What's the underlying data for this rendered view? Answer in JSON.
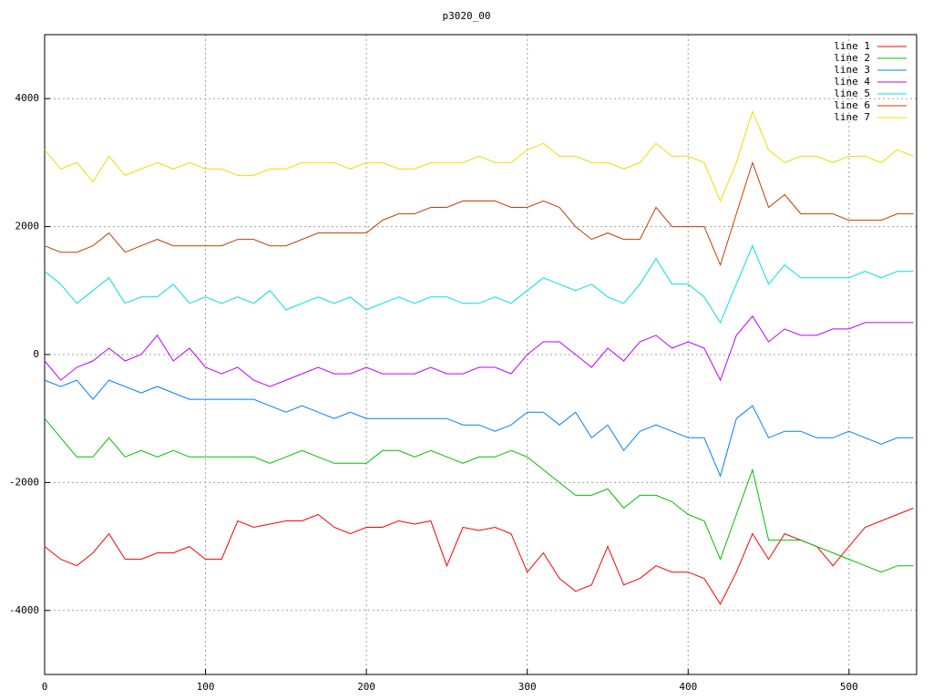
{
  "chart_data": {
    "type": "line",
    "title": "p3020_00",
    "x": [
      0,
      10,
      20,
      30,
      40,
      50,
      60,
      70,
      80,
      90,
      100,
      110,
      120,
      130,
      140,
      150,
      160,
      170,
      180,
      190,
      200,
      210,
      220,
      230,
      240,
      250,
      260,
      270,
      280,
      290,
      300,
      310,
      320,
      330,
      340,
      350,
      360,
      370,
      380,
      390,
      400,
      410,
      420,
      430,
      440,
      450,
      460,
      470,
      480,
      490,
      500,
      510,
      520,
      530,
      540
    ],
    "xlim": [
      0,
      542
    ],
    "xticks": [
      0,
      100,
      200,
      300,
      400,
      500
    ],
    "ylim": [
      -5000,
      5000
    ],
    "yticks": [
      -4000,
      -2000,
      0,
      2000,
      4000
    ],
    "grid": true,
    "legend": "top-right",
    "series": [
      {
        "name": "line 1",
        "color": "#ff0000",
        "values": [
          -3000,
          -3200,
          -3300,
          -3100,
          -2800,
          -3200,
          -3200,
          -3100,
          -3100,
          -3000,
          -3200,
          -3200,
          -2600,
          -2700,
          -2650,
          -2600,
          -2600,
          -2500,
          -2700,
          -2800,
          -2700,
          -2700,
          -2600,
          -2650,
          -2600,
          -3300,
          -2700,
          -2750,
          -2700,
          -2800,
          -3400,
          -3100,
          -3500,
          -3700,
          -3600,
          -3000,
          -3600,
          -3500,
          -3300,
          -3400,
          -3400,
          -3500,
          -3900,
          -3400,
          -2800,
          -3200,
          -2800,
          -2900,
          -3000,
          -3300,
          -3000,
          -2700,
          -2600,
          -2500,
          -2400
        ]
      },
      {
        "name": "line 2",
        "color": "#00c000",
        "values": [
          -1000,
          -1300,
          -1600,
          -1600,
          -1300,
          -1600,
          -1500,
          -1600,
          -1500,
          -1600,
          -1600,
          -1600,
          -1600,
          -1600,
          -1700,
          -1600,
          -1500,
          -1600,
          -1700,
          -1700,
          -1700,
          -1500,
          -1500,
          -1600,
          -1500,
          -1600,
          -1700,
          -1600,
          -1600,
          -1500,
          -1600,
          -1800,
          -2000,
          -2200,
          -2200,
          -2100,
          -2400,
          -2200,
          -2200,
          -2300,
          -2500,
          -2600,
          -3200,
          -2500,
          -1800,
          -2900,
          -2900,
          -2900,
          -3000,
          -3100,
          -3200,
          -3300,
          -3400,
          -3300,
          -3300
        ]
      },
      {
        "name": "line 3",
        "color": "#0080ff",
        "values": [
          -400,
          -500,
          -400,
          -700,
          -400,
          -500,
          -600,
          -500,
          -600,
          -700,
          -700,
          -700,
          -700,
          -700,
          -800,
          -900,
          -800,
          -900,
          -1000,
          -900,
          -1000,
          -1000,
          -1000,
          -1000,
          -1000,
          -1000,
          -1100,
          -1100,
          -1200,
          -1100,
          -900,
          -900,
          -1100,
          -900,
          -1300,
          -1100,
          -1500,
          -1200,
          -1100,
          -1200,
          -1300,
          -1300,
          -1900,
          -1000,
          -800,
          -1300,
          -1200,
          -1200,
          -1300,
          -1300,
          -1200,
          -1300,
          -1400,
          -1300,
          -1300
        ]
      },
      {
        "name": "line 4",
        "color": "#c000ff",
        "values": [
          -100,
          -400,
          -200,
          -100,
          100,
          -100,
          0,
          300,
          -100,
          100,
          -200,
          -300,
          -200,
          -400,
          -500,
          -400,
          -300,
          -200,
          -300,
          -300,
          -200,
          -300,
          -300,
          -300,
          -200,
          -300,
          -300,
          -200,
          -200,
          -300,
          0,
          200,
          200,
          0,
          -200,
          100,
          -100,
          200,
          300,
          100,
          200,
          100,
          -400,
          300,
          600,
          200,
          400,
          300,
          300,
          400,
          400,
          500,
          500,
          500,
          500
        ]
      },
      {
        "name": "line 5",
        "color": "#00e0e0",
        "values": [
          1300,
          1100,
          800,
          1000,
          1200,
          800,
          900,
          900,
          1100,
          800,
          900,
          800,
          900,
          800,
          1000,
          700,
          800,
          900,
          800,
          900,
          700,
          800,
          900,
          800,
          900,
          900,
          800,
          800,
          900,
          800,
          1000,
          1200,
          1100,
          1000,
          1100,
          900,
          800,
          1100,
          1500,
          1100,
          1100,
          900,
          500,
          1100,
          1700,
          1100,
          1400,
          1200,
          1200,
          1200,
          1200,
          1300,
          1200,
          1300,
          1300
        ]
      },
      {
        "name": "line 6",
        "color": "#c04000",
        "values": [
          1700,
          1600,
          1600,
          1700,
          1900,
          1600,
          1700,
          1800,
          1700,
          1700,
          1700,
          1700,
          1800,
          1800,
          1700,
          1700,
          1800,
          1900,
          1900,
          1900,
          1900,
          2100,
          2200,
          2200,
          2300,
          2300,
          2400,
          2400,
          2400,
          2300,
          2300,
          2400,
          2300,
          2000,
          1800,
          1900,
          1800,
          1800,
          2300,
          2000,
          2000,
          2000,
          1400,
          2200,
          3000,
          2300,
          2500,
          2200,
          2200,
          2200,
          2100,
          2100,
          2100,
          2200,
          2200
        ]
      },
      {
        "name": "line 7",
        "color": "#eedd00",
        "values": [
          3200,
          2900,
          3000,
          2700,
          3100,
          2800,
          2900,
          3000,
          2900,
          3000,
          2900,
          2900,
          2800,
          2800,
          2900,
          2900,
          3000,
          3000,
          3000,
          2900,
          3000,
          3000,
          2900,
          2900,
          3000,
          3000,
          3000,
          3100,
          3000,
          3000,
          3200,
          3300,
          3100,
          3100,
          3000,
          3000,
          2900,
          3000,
          3300,
          3100,
          3100,
          3000,
          2400,
          3000,
          3800,
          3200,
          3000,
          3100,
          3100,
          3000,
          3100,
          3100,
          3000,
          3200,
          3100
        ]
      }
    ]
  }
}
